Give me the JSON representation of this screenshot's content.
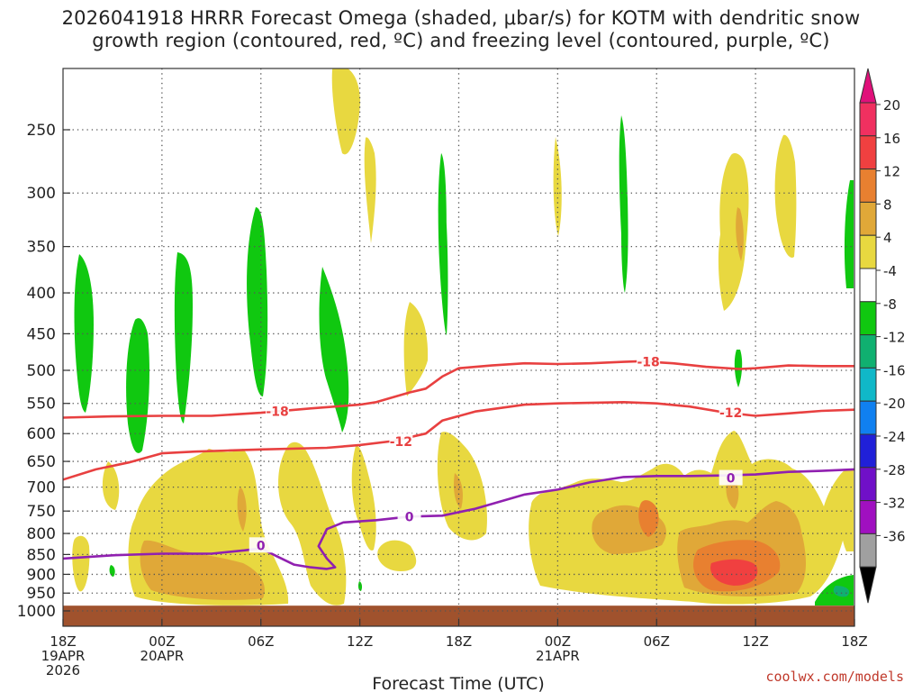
{
  "header": {
    "title_line1": "2026041918 HRRR Forecast Omega (shaded, μbar/s) for KOTM with dendritic snow",
    "title_line2": "growth region (contoured, red, ºC) and freezing level (contoured, purple, ºC)"
  },
  "footer": {
    "credit": "coolwx.com/models"
  },
  "chart_data": {
    "type": "heatmap",
    "xlabel": "Forecast Time (UTC)",
    "ylabel": "",
    "x_unit": "hours from 2026-04-19 18Z",
    "xlim": [
      0,
      48
    ],
    "y_axis": "pressure (hPa), reversed, log",
    "ylim": [
      1025,
      195
    ],
    "x_ticks": [
      {
        "x": 0,
        "lines": [
          "18Z",
          "19APR",
          "2026"
        ]
      },
      {
        "x": 6,
        "lines": [
          "00Z",
          "20APR"
        ]
      },
      {
        "x": 12,
        "lines": [
          "06Z"
        ]
      },
      {
        "x": 18,
        "lines": [
          "12Z"
        ]
      },
      {
        "x": 24,
        "lines": [
          "18Z"
        ]
      },
      {
        "x": 30,
        "lines": [
          "00Z",
          "21APR"
        ]
      },
      {
        "x": 36,
        "lines": [
          "06Z"
        ]
      },
      {
        "x": 42,
        "lines": [
          "12Z"
        ]
      },
      {
        "x": 48,
        "lines": [
          "18Z"
        ]
      }
    ],
    "y_ticks": [
      250,
      300,
      350,
      400,
      450,
      500,
      550,
      600,
      650,
      700,
      750,
      800,
      850,
      900,
      950,
      1000
    ],
    "grid": true,
    "colorbar": {
      "labels": [
        "20",
        "16",
        "12",
        "8",
        "4",
        "-4",
        "-8",
        "-12",
        "-16",
        "-20",
        "-24",
        "-28",
        "-32",
        "-36"
      ],
      "colors": [
        "#f03060",
        "#f04040",
        "#e88030",
        "#e0a838",
        "#e8d840",
        "#ffffff",
        "#10c810",
        "#10b070",
        "#10b8c8",
        "#1080f0",
        "#2020d8",
        "#7010c8",
        "#a010c0",
        "#a0a0a0"
      ],
      "top_color": "#e0107a",
      "bottom_color": "#000000"
    },
    "ground": {
      "color": "#a0522d",
      "p_top": 985
    },
    "contours": [
      {
        "name": "dendritic -18",
        "color": "#e84040",
        "label": "-18",
        "label_at": [
          {
            "x": 13.0,
            "p": 563
          },
          {
            "x": 35.5,
            "p": 488
          }
        ],
        "points": [
          [
            0,
            573
          ],
          [
            3,
            571
          ],
          [
            6,
            570
          ],
          [
            9,
            570
          ],
          [
            12,
            565
          ],
          [
            15,
            558
          ],
          [
            18,
            552
          ],
          [
            19,
            548
          ],
          [
            21,
            533
          ],
          [
            22,
            527
          ],
          [
            23,
            509
          ],
          [
            24,
            497
          ],
          [
            26,
            493
          ],
          [
            28,
            490
          ],
          [
            30,
            491
          ],
          [
            32,
            490
          ],
          [
            34,
            488
          ],
          [
            35,
            487
          ],
          [
            37,
            490
          ],
          [
            39,
            495
          ],
          [
            41,
            498
          ],
          [
            42,
            497
          ],
          [
            44,
            493
          ],
          [
            46,
            494
          ],
          [
            48,
            494
          ]
        ]
      },
      {
        "name": "dendritic -12",
        "color": "#e84040",
        "label": "-12",
        "label_at": [
          {
            "x": 20.5,
            "p": 614
          },
          {
            "x": 40.5,
            "p": 565
          }
        ],
        "points": [
          [
            0,
            685
          ],
          [
            2,
            665
          ],
          [
            4,
            652
          ],
          [
            6,
            635
          ],
          [
            8,
            632
          ],
          [
            10,
            630
          ],
          [
            12,
            628
          ],
          [
            16,
            625
          ],
          [
            18,
            620
          ],
          [
            20,
            613
          ],
          [
            22,
            600
          ],
          [
            23,
            578
          ],
          [
            25,
            563
          ],
          [
            28,
            552
          ],
          [
            30,
            550
          ],
          [
            34,
            548
          ],
          [
            36,
            550
          ],
          [
            38,
            555
          ],
          [
            40,
            564
          ],
          [
            42,
            570
          ],
          [
            44,
            566
          ],
          [
            46,
            562
          ],
          [
            48,
            560
          ]
        ]
      },
      {
        "name": "freezing level 0",
        "color": "#9020b0",
        "label": "0",
        "label_at": [
          {
            "x": 12.0,
            "p": 828
          },
          {
            "x": 21.0,
            "p": 762
          },
          {
            "x": 40.5,
            "p": 682
          }
        ],
        "points": [
          [
            0,
            860
          ],
          [
            3,
            852
          ],
          [
            6,
            848
          ],
          [
            9,
            848
          ],
          [
            11,
            840
          ],
          [
            12,
            835
          ],
          [
            13,
            855
          ],
          [
            14,
            875
          ],
          [
            15,
            882
          ],
          [
            16,
            886
          ],
          [
            16.5,
            882
          ],
          [
            16,
            860
          ],
          [
            15.5,
            830
          ],
          [
            16,
            790
          ],
          [
            17,
            775
          ],
          [
            19,
            770
          ],
          [
            21,
            762
          ],
          [
            23,
            760
          ],
          [
            25,
            745
          ],
          [
            28,
            715
          ],
          [
            30,
            705
          ],
          [
            32,
            690
          ],
          [
            34,
            680
          ],
          [
            36,
            678
          ],
          [
            38,
            678
          ],
          [
            40,
            677
          ],
          [
            42,
            675
          ],
          [
            44,
            670
          ],
          [
            46,
            668
          ],
          [
            48,
            665
          ]
        ]
      }
    ]
  }
}
